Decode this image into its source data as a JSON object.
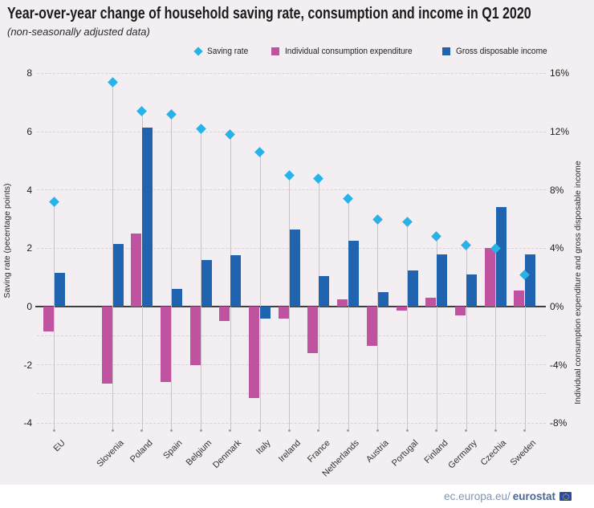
{
  "header": {
    "title": "Year-over-year change of household saving rate, consumption and income in Q1 2020",
    "subtitle": "(non-seasonally adjusted data)"
  },
  "legend": {
    "items": [
      {
        "label": "Saving rate",
        "marker": "diamond",
        "color": "#29b2e8"
      },
      {
        "label": "Individual consumption expenditure",
        "marker": "square",
        "color": "#c0539f"
      },
      {
        "label": "Gross disposable income",
        "marker": "square",
        "color": "#2064af"
      }
    ]
  },
  "footer": {
    "link_prefix": "ec.europa.eu/",
    "link_bold": "eurostat",
    "icon": "eu-flag-icon"
  },
  "chart_data": {
    "type": "bar",
    "title": "Year-over-year change of household saving rate, consumption and income in Q1 2020",
    "subtitle": "(non-seasonally adjusted data)",
    "categories": [
      "EU",
      "Slovenia",
      "Poland",
      "Spain",
      "Belgium",
      "Denmark",
      "Italy",
      "Ireland",
      "France",
      "Netherlands",
      "Austria",
      "Portugal",
      "Finland",
      "Germany",
      "Czechia",
      "Sweden"
    ],
    "series": [
      {
        "name": "Saving rate",
        "type": "scatter",
        "marker": "diamond",
        "axis": "left",
        "unit": "percentage points",
        "color": "#29b2e8",
        "values": [
          3.6,
          7.7,
          6.7,
          6.6,
          6.1,
          5.9,
          5.3,
          4.5,
          4.4,
          3.7,
          3.0,
          2.9,
          2.4,
          2.1,
          2.0,
          1.1
        ]
      },
      {
        "name": "Individual consumption expenditure",
        "type": "bar",
        "axis": "right",
        "unit": "%",
        "color": "#c0539f",
        "values": [
          -1.7,
          -5.3,
          5.0,
          -5.2,
          -4.0,
          -1.0,
          -6.3,
          -0.8,
          -3.2,
          0.5,
          -2.7,
          -0.3,
          0.6,
          -0.6,
          4.0,
          1.1
        ]
      },
      {
        "name": "Gross disposable income",
        "type": "bar",
        "axis": "right",
        "unit": "%",
        "color": "#2064af",
        "values": [
          2.3,
          4.3,
          12.3,
          1.2,
          3.2,
          3.5,
          -0.8,
          5.3,
          2.1,
          4.5,
          1.0,
          2.5,
          3.6,
          2.2,
          6.8,
          3.6
        ]
      }
    ],
    "left_axis": {
      "label": "Saving rate (pecentage points)",
      "ticks": [
        8,
        6,
        4,
        2,
        0,
        -2,
        -4
      ],
      "range": [
        -4.4,
        8.2
      ]
    },
    "right_axis": {
      "label": "Individual consumption expenditure and gross disposable income",
      "tick_labels": [
        "16%",
        "12%",
        "8%",
        "4%",
        "0%",
        "-4%",
        "-8%"
      ],
      "range": [
        -8.8,
        16.4
      ]
    },
    "layout": {
      "grid": "dashed",
      "gridlines_left_units": [
        8,
        6,
        4,
        2,
        -1,
        -2,
        -3,
        -4
      ],
      "legend_position": "top-right",
      "eu_separated_gap": true
    }
  }
}
